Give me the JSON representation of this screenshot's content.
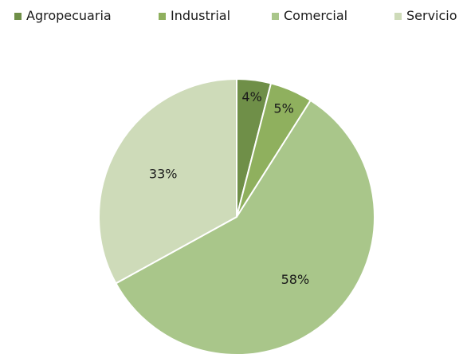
{
  "chart_data": {
    "type": "pie",
    "categories": [
      "Agropecuaria",
      "Industrial",
      "Comercial",
      "Servicio"
    ],
    "values": [
      4,
      5,
      58,
      33
    ],
    "labels": [
      "4%",
      "5%",
      "58%",
      "33%"
    ],
    "colors": [
      "#6f8f48",
      "#8fb05e",
      "#a9c68a",
      "#cedbb9"
    ],
    "legend_position": "top",
    "start_angle_deg": 0,
    "direction": "clockwise"
  }
}
